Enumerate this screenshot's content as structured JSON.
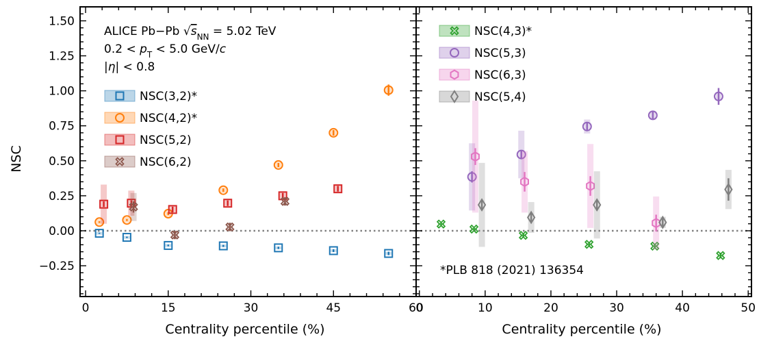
{
  "chart_data": [
    {
      "type": "scatter",
      "panel": "left",
      "xlabel": "Centrality percentile (%)",
      "ylabel": "NSC",
      "xlim": [
        -1,
        60
      ],
      "ylim": [
        -0.47,
        1.6
      ],
      "xticks": [
        0,
        15,
        30,
        45,
        60
      ],
      "xtick_labels": [
        "0",
        "15",
        "30",
        "45",
        "60"
      ],
      "yticks": [
        -0.25,
        0,
        0.25,
        0.5,
        0.75,
        1.0,
        1.25,
        1.5
      ],
      "ytick_labels": [
        "−0.25",
        "0.00",
        "0.25",
        "0.50",
        "0.75",
        "1.00",
        "1.25",
        "1.50"
      ],
      "zero_line": true,
      "grid": false,
      "annotations": [
        {
          "parts": [
            {
              "t": "ALICE Pb−Pb "
            },
            {
              "t": "√",
              "root": true
            },
            {
              "t": "s",
              "it": true,
              "over": true
            },
            {
              "t": "NN",
              "sub": true
            },
            {
              "t": " = 5.02 TeV"
            }
          ]
        },
        {
          "parts": [
            {
              "t": "0.2 < "
            },
            {
              "t": "p",
              "it": true
            },
            {
              "t": "T",
              "sub": true
            },
            {
              "t": " < 5.0 GeV/"
            },
            {
              "t": "c",
              "it": true
            }
          ]
        },
        {
          "parts": [
            {
              "t": "|"
            },
            {
              "t": "η",
              "it": true
            },
            {
              "t": "| < 0.8"
            }
          ]
        }
      ],
      "legend_position": "upper-left",
      "series": [
        {
          "name": "NSC(3,2)*",
          "color": "#1f77b4",
          "marker": "square",
          "x": [
            2.5,
            7.5,
            15,
            25,
            35,
            45,
            55
          ],
          "y": [
            -0.018,
            -0.047,
            -0.105,
            -0.108,
            -0.122,
            -0.142,
            -0.162
          ],
          "err": [
            0.004,
            0.005,
            0.006,
            0.007,
            0.008,
            0.01,
            0.012
          ],
          "sys": [
            0.01,
            0.01,
            0.01,
            0.01,
            0.01,
            0.01,
            0.01
          ]
        },
        {
          "name": "NSC(4,2)*",
          "color": "#ff7f0e",
          "marker": "circle",
          "x": [
            2.5,
            7.5,
            15,
            25,
            35,
            45,
            55
          ],
          "y": [
            0.062,
            0.077,
            0.122,
            0.29,
            0.47,
            0.7,
            1.005
          ],
          "err": [
            0.006,
            0.007,
            0.01,
            0.012,
            0.015,
            0.02,
            0.04
          ],
          "sys": [
            0.02,
            0.02,
            0.02,
            0.02,
            0.02,
            0.02,
            0.03
          ]
        },
        {
          "name": "NSC(5,2)",
          "color": "#d62728",
          "marker": "square",
          "x": [
            3.3,
            8.3,
            15.8,
            25.8,
            35.8,
            45.8
          ],
          "y": [
            0.19,
            0.197,
            0.152,
            0.197,
            0.25,
            0.3
          ],
          "err": [
            0.02,
            0.02,
            0.02,
            0.02,
            0.02,
            0.02
          ],
          "sys": [
            0.14,
            0.09,
            0.03,
            0.03,
            0.03,
            0.03
          ]
        },
        {
          "name": "NSC(6,2)",
          "color": "#8c564b",
          "marker": "x",
          "x": [
            8.7,
            16.2,
            26.2,
            36.2
          ],
          "y": [
            0.17,
            -0.03,
            0.027,
            0.21
          ],
          "err": [
            0.04,
            0.03,
            0.03,
            0.03
          ],
          "sys": [
            0.1,
            0.03,
            0.03,
            0.03
          ]
        }
      ]
    },
    {
      "type": "scatter",
      "panel": "right",
      "xlabel": "Centrality percentile (%)",
      "ylabel": "",
      "xlim": [
        -0.5,
        50.5
      ],
      "ylim": [
        -0.47,
        1.6
      ],
      "xticks": [
        0,
        10,
        20,
        30,
        40,
        50
      ],
      "xtick_labels": [
        "0",
        "10",
        "20",
        "30",
        "40",
        "50"
      ],
      "zero_line": true,
      "grid": false,
      "annotations": [
        {
          "parts": [
            {
              "t": "*PLB 818 (2021) 136354"
            }
          ]
        }
      ],
      "legend_position": "upper-left",
      "series": [
        {
          "name": "NSC(4,3)*",
          "color": "#2ca02c",
          "marker": "x",
          "x": [
            3.3,
            8.3,
            15.8,
            25.8,
            35.8,
            45.8
          ],
          "y": [
            0.048,
            0.012,
            -0.033,
            -0.097,
            -0.11,
            -0.177
          ],
          "err": [
            0.008,
            0.008,
            0.01,
            0.012,
            0.015,
            0.02
          ],
          "sys": [
            0.01,
            0.01,
            0.01,
            0.01,
            0.01,
            0.01
          ]
        },
        {
          "name": "NSC(5,3)",
          "color": "#9467bd",
          "marker": "circle",
          "x": [
            8.0,
            15.5,
            25.5,
            35.5,
            45.5
          ],
          "y": [
            0.385,
            0.545,
            0.745,
            0.825,
            0.96
          ],
          "err": [
            0.04,
            0.03,
            0.03,
            0.03,
            0.06
          ],
          "sys": [
            0.24,
            0.17,
            0.05,
            0.03,
            0.03
          ]
        },
        {
          "name": "NSC(6,3)",
          "color": "#e377c2",
          "marker": "hexagon",
          "x": [
            8.5,
            16.0,
            26.0,
            36.0
          ],
          "y": [
            0.53,
            0.35,
            0.32,
            0.055
          ],
          "err": [
            0.06,
            0.07,
            0.07,
            0.06
          ],
          "sys": [
            0.4,
            0.22,
            0.3,
            0.19
          ]
        },
        {
          "name": "NSC(5,4)",
          "color": "#7f7f7f",
          "marker": "diamond",
          "x": [
            9.5,
            17.0,
            27.0,
            37.0,
            47.0
          ],
          "y": [
            0.185,
            0.095,
            0.185,
            0.06,
            0.295
          ],
          "err": [
            0.03,
            0.03,
            0.04,
            0.03,
            0.08
          ],
          "sys": [
            0.3,
            0.11,
            0.24,
            0.04,
            0.14
          ]
        }
      ]
    }
  ]
}
